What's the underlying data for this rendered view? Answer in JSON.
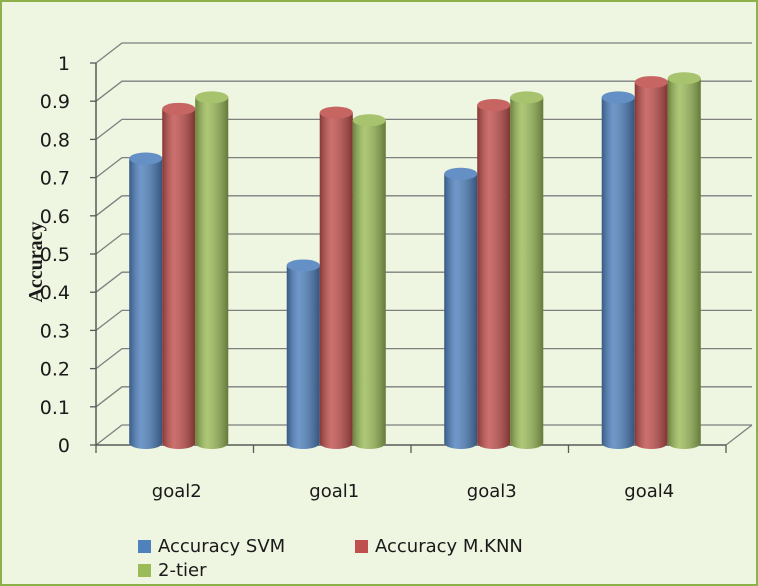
{
  "chart_data": {
    "type": "bar",
    "categories": [
      "goal2",
      "goal1",
      "goal3",
      "goal4"
    ],
    "series": [
      {
        "name": "Accuracy SVM",
        "values": [
          0.75,
          0.47,
          0.71,
          0.91
        ]
      },
      {
        "name": "Accuracy M.KNN",
        "values": [
          0.88,
          0.87,
          0.89,
          0.95
        ]
      },
      {
        "name": "2-tier",
        "values": [
          0.91,
          0.85,
          0.91,
          0.96
        ]
      }
    ],
    "ylabel": "Accuracy",
    "xlabel": "",
    "ylim": [
      0,
      1
    ],
    "yticks": [
      "0",
      "0.1",
      "0.2",
      "0.3",
      "0.4",
      "0.5",
      "0.6",
      "0.7",
      "0.8",
      "0.9",
      "1"
    ],
    "grid": true,
    "legend_position": "bottom",
    "colors": {
      "series": [
        "#4f81bd",
        "#c0504d",
        "#9bbb59"
      ],
      "background": "#eef5e0",
      "border": "#8db04a"
    }
  }
}
